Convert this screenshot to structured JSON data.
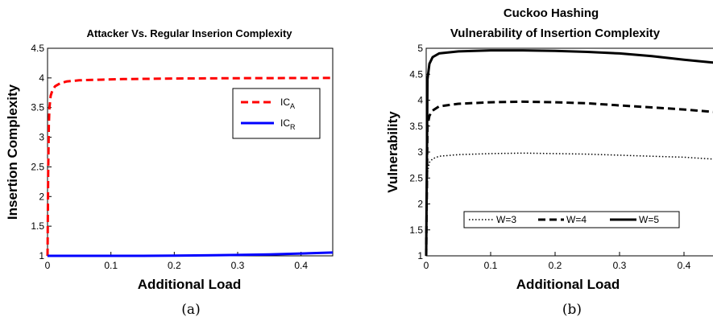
{
  "chart_data": [
    {
      "type": "line",
      "title": "Attacker Vs. Regular Inserion Complexity",
      "xlabel": "Additional Load",
      "ylabel": "Insertion Complexity",
      "xlim": [
        0,
        0.45
      ],
      "ylim": [
        1,
        4.5
      ],
      "xticks": [
        "0",
        "0.1",
        "0.2",
        "0.3",
        "0.4"
      ],
      "yticks": [
        "1",
        "1.5",
        "2",
        "2.5",
        "3",
        "3.5",
        "4",
        "4.5"
      ],
      "legend_position": "right",
      "series": [
        {
          "name": "IC",
          "subscript": "A",
          "color": "#ff0000",
          "style": "dashed",
          "x": [
            0,
            0.001,
            0.002,
            0.003,
            0.005,
            0.008,
            0.012,
            0.02,
            0.03,
            0.05,
            0.08,
            0.12,
            0.2,
            0.3,
            0.4,
            0.45
          ],
          "y": [
            1.0,
            2.4,
            3.2,
            3.5,
            3.7,
            3.8,
            3.86,
            3.91,
            3.94,
            3.96,
            3.97,
            3.98,
            3.99,
            3.995,
            3.998,
            4.0
          ]
        },
        {
          "name": "IC",
          "subscript": "R",
          "color": "#0000ff",
          "style": "solid",
          "x": [
            0,
            0.05,
            0.1,
            0.15,
            0.2,
            0.25,
            0.3,
            0.35,
            0.4,
            0.45
          ],
          "y": [
            1.0,
            1.0,
            1.0,
            1.0,
            1.003,
            1.008,
            1.015,
            1.025,
            1.04,
            1.055
          ]
        }
      ]
    },
    {
      "type": "line",
      "title": "Cuckoo Hashing",
      "subtitle": "Vulnerability of Insertion Complexity",
      "xlabel": "Additional Load",
      "ylabel": "Vulnerability",
      "xlim": [
        0,
        0.45
      ],
      "ylim": [
        1,
        5
      ],
      "xticks": [
        "0",
        "0.1",
        "0.2",
        "0.3",
        "0.4"
      ],
      "yticks": [
        "1",
        "1.5",
        "2",
        "2.5",
        "3",
        "3.5",
        "4",
        "4.5",
        "5"
      ],
      "legend_position": "bottom",
      "series": [
        {
          "name": "W=3",
          "color": "#000000",
          "style": "dotted",
          "x": [
            0,
            0.002,
            0.005,
            0.01,
            0.02,
            0.05,
            0.1,
            0.15,
            0.2,
            0.25,
            0.3,
            0.35,
            0.4,
            0.45
          ],
          "y": [
            1.0,
            2.6,
            2.8,
            2.87,
            2.92,
            2.95,
            2.97,
            2.98,
            2.97,
            2.96,
            2.94,
            2.92,
            2.9,
            2.86
          ]
        },
        {
          "name": "W=4",
          "color": "#000000",
          "style": "dashed",
          "x": [
            0,
            0.002,
            0.005,
            0.01,
            0.02,
            0.05,
            0.1,
            0.15,
            0.2,
            0.25,
            0.3,
            0.35,
            0.4,
            0.45
          ],
          "y": [
            1.0,
            3.5,
            3.7,
            3.8,
            3.88,
            3.93,
            3.96,
            3.97,
            3.96,
            3.94,
            3.9,
            3.86,
            3.82,
            3.77
          ]
        },
        {
          "name": "W=5",
          "color": "#000000",
          "style": "solid",
          "x": [
            0,
            0.002,
            0.005,
            0.01,
            0.02,
            0.05,
            0.1,
            0.15,
            0.2,
            0.25,
            0.3,
            0.35,
            0.4,
            0.45
          ],
          "y": [
            1.0,
            4.4,
            4.7,
            4.83,
            4.9,
            4.94,
            4.96,
            4.96,
            4.95,
            4.93,
            4.9,
            4.85,
            4.78,
            4.72
          ]
        }
      ]
    }
  ],
  "captions": [
    "(a)",
    "(b)"
  ]
}
